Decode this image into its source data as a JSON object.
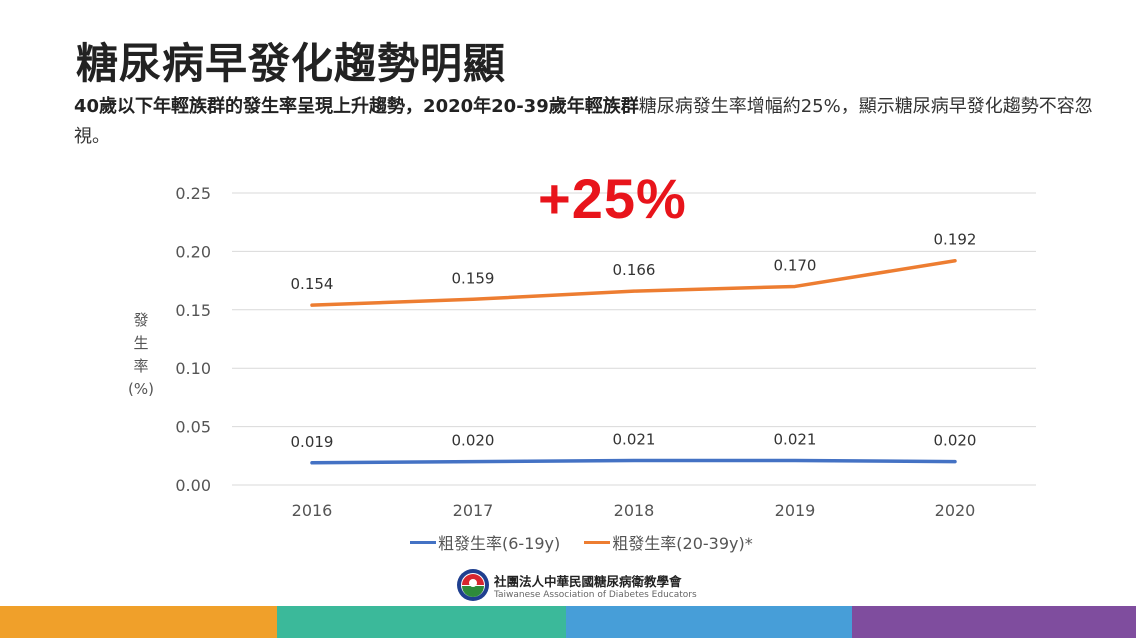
{
  "title": "糖尿病早發化趨勢明顯",
  "description": {
    "bold_part": "40歲以下年輕族群的發生率呈現上升趨勢，2020年20-39歲年輕族群",
    "regular_part": "糖尿病發生率增幅約25%，顯示糖尿病早發化趨勢不容忽視。"
  },
  "highlight": "+25%",
  "chart_data": {
    "type": "line",
    "title": "",
    "xlabel": "",
    "ylabel": "發生率(%)",
    "ylabel_lines": [
      "發",
      "生",
      "率",
      "(%)"
    ],
    "x": [
      "2016",
      "2017",
      "2018",
      "2019",
      "2020"
    ],
    "ylim": [
      0,
      0.25
    ],
    "yticks": [
      "0.00",
      "0.05",
      "0.10",
      "0.15",
      "0.20",
      "0.25"
    ],
    "grid": true,
    "legend_position": "bottom",
    "series": [
      {
        "name": "粗發生率(6-19y)",
        "color": "#4472c4",
        "values": [
          0.019,
          0.02,
          0.021,
          0.021,
          0.02
        ],
        "labels": [
          "0.019",
          "0.020",
          "0.021",
          "0.021",
          "0.020"
        ]
      },
      {
        "name": "粗發生率(20-39y)*",
        "color": "#ed7d31",
        "values": [
          0.154,
          0.159,
          0.166,
          0.17,
          0.192
        ],
        "labels": [
          "0.154",
          "0.159",
          "0.166",
          "0.170",
          "0.192"
        ]
      }
    ]
  },
  "logo": {
    "name_cn": "社團法人中華民國糖尿病衛教學會",
    "name_en": "Taiwanese Association of Diabetes Educators"
  },
  "footer_colors": [
    "#f0a02a",
    "#3bb99a",
    "#479ed8",
    "#7f4d9e"
  ]
}
